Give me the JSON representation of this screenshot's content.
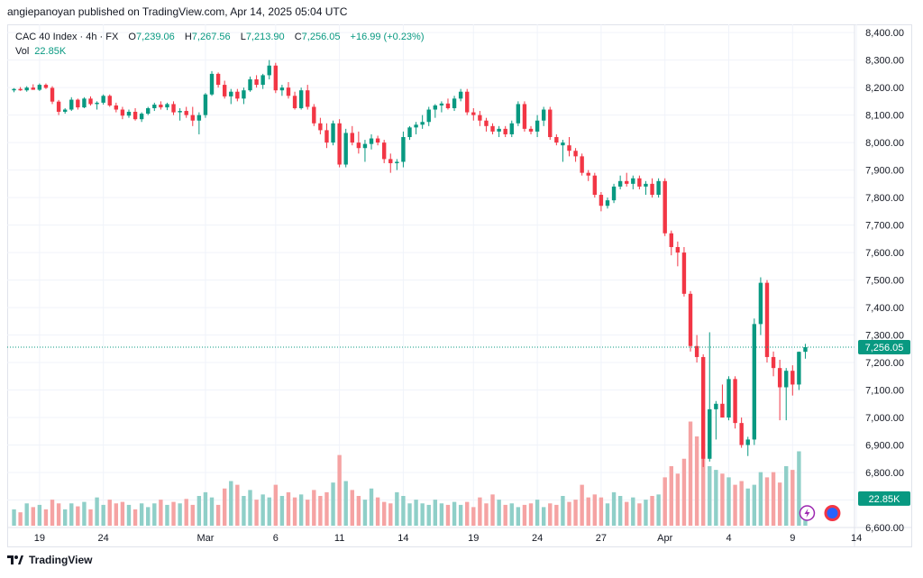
{
  "header": {
    "published": "angiepanoyan published on TradingView.com, Apr 14, 2025 05:04 UTC"
  },
  "legend": {
    "symbol": "CAC 40 Index · 4h · FX",
    "open_label": "O",
    "open": "7,239.06",
    "high_label": "H",
    "high": "7,267.56",
    "low_label": "L",
    "low": "7,213.90",
    "close_label": "C",
    "close": "7,256.05",
    "change": "+16.99 (+0.23%)",
    "vol_label": "Vol",
    "vol_value": "22.85K"
  },
  "footer": {
    "brand": "TradingView",
    "logo_icon": "tradingview-logo-icon"
  },
  "colors": {
    "up": "#089981",
    "down": "#f23645",
    "vol_up": "#8fcfc8",
    "vol_down": "#f5a3a3",
    "grid": "#f0f3fa"
  },
  "chart_data": {
    "type": "candlestick",
    "title": "CAC 40 Index · 4h · FX",
    "price_axis": {
      "ticks": [
        "8,400.00",
        "8,300.00",
        "8,200.00",
        "8,100.00",
        "8,000.00",
        "7,900.00",
        "7,800.00",
        "7,700.00",
        "7,600.00",
        "7,500.00",
        "7,400.00",
        "7,300.00",
        "7,200.00",
        "7,100.00",
        "7,000.00",
        "6,900.00",
        "6,800.00",
        "6,700.00",
        "6,600.00"
      ],
      "tick_values": [
        8400,
        8300,
        8200,
        8100,
        8000,
        7900,
        7800,
        7700,
        7600,
        7500,
        7400,
        7300,
        7200,
        7100,
        7000,
        6900,
        6800,
        6700,
        6600
      ],
      "range": [
        6600,
        8430
      ]
    },
    "time_axis": {
      "labels": [
        "19",
        "24",
        "Mar",
        "6",
        "11",
        "14",
        "19",
        "24",
        "27",
        "Apr",
        "4",
        "9",
        "14"
      ],
      "label_bars": [
        4,
        14,
        30,
        41,
        51,
        61,
        72,
        82,
        92,
        102,
        112,
        122,
        132
      ]
    },
    "last_price": "7,256.05",
    "last_price_value": 7256.05,
    "volume_tag": "22.85K",
    "volume_scale_max": 100,
    "candles": [
      [
        8190,
        8198,
        8183,
        8195,
        22,
        1
      ],
      [
        8195,
        8202,
        8188,
        8190,
        18,
        0
      ],
      [
        8190,
        8205,
        8185,
        8200,
        30,
        1
      ],
      [
        8200,
        8212,
        8192,
        8192,
        25,
        0
      ],
      [
        8192,
        8215,
        8188,
        8210,
        28,
        1
      ],
      [
        8210,
        8215,
        8195,
        8199,
        22,
        0
      ],
      [
        8199,
        8205,
        8140,
        8149,
        35,
        0
      ],
      [
        8149,
        8155,
        8100,
        8112,
        30,
        0
      ],
      [
        8112,
        8125,
        8105,
        8120,
        22,
        1
      ],
      [
        8120,
        8165,
        8115,
        8156,
        30,
        1
      ],
      [
        8156,
        8160,
        8120,
        8128,
        26,
        0
      ],
      [
        8128,
        8165,
        8125,
        8160,
        32,
        1
      ],
      [
        8160,
        8168,
        8135,
        8140,
        22,
        0
      ],
      [
        8140,
        8150,
        8120,
        8145,
        38,
        1
      ],
      [
        8145,
        8175,
        8138,
        8170,
        28,
        1
      ],
      [
        8170,
        8175,
        8130,
        8135,
        35,
        0
      ],
      [
        8135,
        8145,
        8110,
        8120,
        30,
        0
      ],
      [
        8120,
        8130,
        8085,
        8098,
        32,
        0
      ],
      [
        8098,
        8120,
        8090,
        8112,
        28,
        1
      ],
      [
        8112,
        8125,
        8080,
        8085,
        22,
        0
      ],
      [
        8085,
        8110,
        8075,
        8105,
        30,
        1
      ],
      [
        8105,
        8130,
        8100,
        8125,
        25,
        1
      ],
      [
        8125,
        8145,
        8115,
        8138,
        30,
        1
      ],
      [
        8138,
        8150,
        8120,
        8128,
        35,
        0
      ],
      [
        8128,
        8145,
        8118,
        8140,
        28,
        1
      ],
      [
        8140,
        8150,
        8100,
        8110,
        32,
        0
      ],
      [
        8110,
        8125,
        8080,
        8115,
        30,
        1
      ],
      [
        8115,
        8130,
        8090,
        8100,
        36,
        0
      ],
      [
        8100,
        8130,
        8060,
        8080,
        28,
        0
      ],
      [
        8080,
        8110,
        8030,
        8100,
        40,
        1
      ],
      [
        8100,
        8180,
        8090,
        8175,
        45,
        1
      ],
      [
        8175,
        8260,
        8170,
        8250,
        38,
        1
      ],
      [
        8250,
        8255,
        8200,
        8210,
        28,
        0
      ],
      [
        8210,
        8225,
        8160,
        8168,
        50,
        0
      ],
      [
        8168,
        8195,
        8140,
        8185,
        60,
        1
      ],
      [
        8185,
        8195,
        8150,
        8160,
        55,
        0
      ],
      [
        8160,
        8200,
        8140,
        8190,
        40,
        1
      ],
      [
        8190,
        8240,
        8185,
        8230,
        48,
        1
      ],
      [
        8230,
        8245,
        8200,
        8210,
        35,
        0
      ],
      [
        8210,
        8250,
        8195,
        8245,
        42,
        1
      ],
      [
        8245,
        8300,
        8230,
        8280,
        38,
        1
      ],
      [
        8280,
        8290,
        8180,
        8190,
        55,
        0
      ],
      [
        8190,
        8210,
        8170,
        8200,
        40,
        1
      ],
      [
        8200,
        8220,
        8160,
        8170,
        45,
        0
      ],
      [
        8170,
        8185,
        8120,
        8125,
        38,
        0
      ],
      [
        8125,
        8200,
        8120,
        8190,
        42,
        1
      ],
      [
        8190,
        8210,
        8120,
        8130,
        35,
        0
      ],
      [
        8130,
        8140,
        8060,
        8070,
        48,
        0
      ],
      [
        8070,
        8090,
        8030,
        8045,
        40,
        0
      ],
      [
        8045,
        8070,
        7980,
        8000,
        45,
        0
      ],
      [
        8000,
        8080,
        7990,
        8070,
        58,
        1
      ],
      [
        8070,
        8085,
        7910,
        7920,
        95,
        0
      ],
      [
        7920,
        8050,
        7910,
        8035,
        60,
        1
      ],
      [
        8035,
        8060,
        7990,
        8000,
        48,
        0
      ],
      [
        8000,
        8040,
        7960,
        7980,
        40,
        0
      ],
      [
        7980,
        8010,
        7930,
        7995,
        35,
        1
      ],
      [
        7995,
        8030,
        7975,
        8015,
        50,
        1
      ],
      [
        8015,
        8025,
        7990,
        8000,
        38,
        0
      ],
      [
        8000,
        8010,
        7925,
        7940,
        32,
        0
      ],
      [
        7940,
        7960,
        7890,
        7925,
        30,
        0
      ],
      [
        7925,
        7940,
        7900,
        7930,
        45,
        1
      ],
      [
        7930,
        8040,
        7910,
        8020,
        40,
        1
      ],
      [
        8020,
        8060,
        8010,
        8055,
        30,
        1
      ],
      [
        8055,
        8075,
        8030,
        8065,
        35,
        1
      ],
      [
        8065,
        8100,
        8050,
        8075,
        30,
        1
      ],
      [
        8075,
        8130,
        8060,
        8120,
        28,
        1
      ],
      [
        8120,
        8140,
        8090,
        8135,
        35,
        1
      ],
      [
        8135,
        8150,
        8110,
        8142,
        30,
        1
      ],
      [
        8142,
        8160,
        8120,
        8125,
        28,
        0
      ],
      [
        8125,
        8170,
        8115,
        8160,
        32,
        1
      ],
      [
        8160,
        8195,
        8150,
        8185,
        28,
        1
      ],
      [
        8185,
        8195,
        8100,
        8110,
        32,
        0
      ],
      [
        8110,
        8125,
        8080,
        8100,
        25,
        0
      ],
      [
        8100,
        8115,
        8060,
        8080,
        38,
        0
      ],
      [
        8080,
        8090,
        8040,
        8060,
        30,
        0
      ],
      [
        8060,
        8070,
        8030,
        8040,
        42,
        0
      ],
      [
        8040,
        8060,
        8020,
        8050,
        35,
        1
      ],
      [
        8050,
        8060,
        8020,
        8030,
        28,
        0
      ],
      [
        8030,
        8080,
        8020,
        8070,
        30,
        1
      ],
      [
        8070,
        8150,
        8060,
        8140,
        25,
        1
      ],
      [
        8140,
        8150,
        8040,
        8050,
        28,
        0
      ],
      [
        8050,
        8060,
        8030,
        8040,
        30,
        0
      ],
      [
        8040,
        8100,
        8020,
        8080,
        35,
        1
      ],
      [
        8080,
        8130,
        8060,
        8120,
        25,
        1
      ],
      [
        8120,
        8130,
        8010,
        8020,
        30,
        0
      ],
      [
        8020,
        8030,
        7990,
        8000,
        28,
        0
      ],
      [
        8000,
        8010,
        7930,
        7990,
        40,
        1
      ],
      [
        7990,
        8020,
        7950,
        7970,
        32,
        0
      ],
      [
        7970,
        7980,
        7930,
        7950,
        35,
        0
      ],
      [
        7950,
        7960,
        7880,
        7890,
        55,
        0
      ],
      [
        7890,
        7900,
        7860,
        7880,
        38,
        0
      ],
      [
        7880,
        7890,
        7800,
        7810,
        42,
        0
      ],
      [
        7810,
        7820,
        7750,
        7770,
        38,
        0
      ],
      [
        7770,
        7800,
        7760,
        7790,
        30,
        1
      ],
      [
        7790,
        7850,
        7780,
        7840,
        45,
        1
      ],
      [
        7840,
        7880,
        7830,
        7860,
        40,
        1
      ],
      [
        7860,
        7890,
        7840,
        7850,
        32,
        0
      ],
      [
        7850,
        7880,
        7830,
        7870,
        38,
        1
      ],
      [
        7870,
        7880,
        7830,
        7840,
        30,
        0
      ],
      [
        7840,
        7860,
        7810,
        7850,
        35,
        1
      ],
      [
        7850,
        7870,
        7800,
        7810,
        40,
        0
      ],
      [
        7810,
        7870,
        7800,
        7860,
        42,
        1
      ],
      [
        7860,
        7870,
        7660,
        7670,
        65,
        0
      ],
      [
        7670,
        7680,
        7590,
        7620,
        80,
        0
      ],
      [
        7620,
        7640,
        7550,
        7600,
        70,
        0
      ],
      [
        7600,
        7620,
        7440,
        7450,
        90,
        0
      ],
      [
        7450,
        7460,
        7240,
        7260,
        140,
        0
      ],
      [
        7260,
        7300,
        7200,
        7220,
        120,
        0
      ],
      [
        7220,
        7230,
        6820,
        6850,
        100,
        0
      ],
      [
        6850,
        7310,
        6840,
        7030,
        80,
        1
      ],
      [
        7030,
        7060,
        6920,
        7050,
        75,
        1
      ],
      [
        7050,
        7120,
        7000,
        7000,
        70,
        0
      ],
      [
        7000,
        7150,
        6990,
        7140,
        65,
        1
      ],
      [
        7140,
        7150,
        6960,
        6980,
        55,
        0
      ],
      [
        6980,
        7000,
        6890,
        6900,
        60,
        0
      ],
      [
        6900,
        6930,
        6860,
        6920,
        50,
        1
      ],
      [
        6920,
        7360,
        6900,
        7340,
        55,
        1
      ],
      [
        7340,
        7510,
        7300,
        7490,
        72,
        1
      ],
      [
        7490,
        7500,
        7200,
        7220,
        65,
        0
      ],
      [
        7220,
        7240,
        7150,
        7180,
        72,
        0
      ],
      [
        7180,
        7210,
        6990,
        7110,
        58,
        0
      ],
      [
        7110,
        7180,
        6990,
        7170,
        80,
        1
      ],
      [
        7170,
        7190,
        7080,
        7120,
        75,
        0
      ],
      [
        7120,
        7240,
        7100,
        7239,
        100,
        1
      ],
      [
        7239,
        7268,
        7214,
        7256,
        12,
        1
      ]
    ]
  }
}
